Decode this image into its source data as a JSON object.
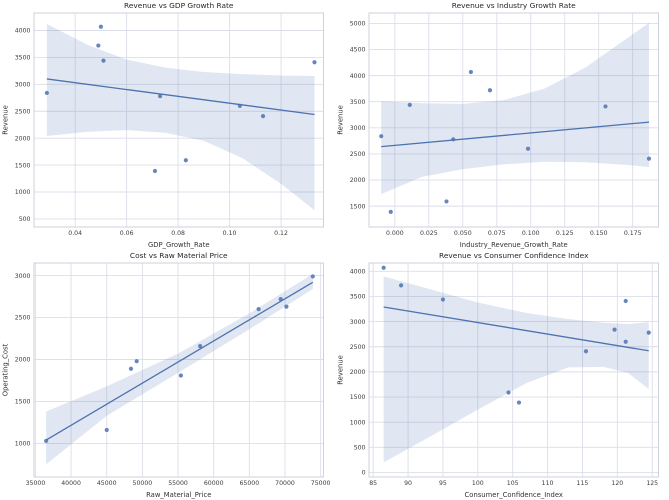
{
  "figure": {
    "background": "#ffffff",
    "layout": "2x2-subplots"
  },
  "colors": {
    "point": "#4c72b0",
    "line": "#4c72b0",
    "band": "rgba(76,114,176,0.17)",
    "grid": "#dcdee9",
    "spine": "#cfd2dc",
    "tick_text": "#3d3d3d",
    "label_text": "#333333",
    "title_text": "#262626",
    "plot_bg": "#ffffff"
  },
  "chart_data": [
    {
      "type": "scatter",
      "name": "revenue-vs-gdp-growth-rate",
      "title": "Revenue vs GDP Growth Rate",
      "xlabel": "GDP_Growth_Rate",
      "ylabel": "Revenue",
      "xlim": [
        0.024,
        0.1365
      ],
      "ylim": [
        350,
        4325
      ],
      "xticks": [
        0.04,
        0.06,
        0.08,
        0.1,
        0.12
      ],
      "xtick_labels": [
        "0.04",
        "0.06",
        "0.08",
        "0.10",
        "0.12"
      ],
      "yticks": [
        500,
        1000,
        1500,
        2000,
        2500,
        3000,
        3500,
        4000
      ],
      "ytick_labels": [
        "500",
        "1000",
        "1500",
        "2000",
        "2500",
        "3000",
        "3500",
        "4000"
      ],
      "grid": true,
      "legend": null,
      "points": [
        [
          0.029,
          2840
        ],
        [
          0.05,
          4070
        ],
        [
          0.049,
          3720
        ],
        [
          0.051,
          3440
        ],
        [
          0.073,
          2780
        ],
        [
          0.071,
          1390
        ],
        [
          0.083,
          1590
        ],
        [
          0.104,
          2600
        ],
        [
          0.113,
          2410
        ],
        [
          0.133,
          3410
        ]
      ],
      "regression_line": {
        "x": [
          0.029,
          0.133
        ],
        "y": [
          3100,
          2440
        ]
      },
      "confidence_band": {
        "x": [
          0.029,
          0.045,
          0.06,
          0.075,
          0.09,
          0.105,
          0.12,
          0.133
        ],
        "upper": [
          4120,
          3730,
          3460,
          3310,
          3230,
          3190,
          3165,
          3155
        ],
        "lower": [
          2040,
          2120,
          2150,
          2100,
          1950,
          1630,
          1150,
          660
        ]
      }
    },
    {
      "type": "scatter",
      "name": "revenue-vs-industry-growth-rate",
      "title": "Revenue vs Industry Growth Rate",
      "xlabel": "Industry_Revenue_Growth_Rate",
      "ylabel": "Revenue",
      "xlim": [
        -0.019,
        0.194
      ],
      "ylim": [
        1100,
        5200
      ],
      "xticks": [
        0.0,
        0.025,
        0.05,
        0.075,
        0.1,
        0.125,
        0.15,
        0.175
      ],
      "xtick_labels": [
        "0.000",
        "0.025",
        "0.050",
        "0.075",
        "0.100",
        "0.125",
        "0.150",
        "0.175"
      ],
      "yticks": [
        1500,
        2000,
        2500,
        3000,
        3500,
        4000,
        4500,
        5000
      ],
      "ytick_labels": [
        "1500",
        "2000",
        "2500",
        "3000",
        "3500",
        "4000",
        "4500",
        "5000"
      ],
      "grid": true,
      "legend": null,
      "points": [
        [
          -0.01,
          2840
        ],
        [
          -0.003,
          1390
        ],
        [
          0.011,
          3440
        ],
        [
          0.038,
          1590
        ],
        [
          0.043,
          2780
        ],
        [
          0.056,
          4070
        ],
        [
          0.07,
          3720
        ],
        [
          0.098,
          2600
        ],
        [
          0.155,
          3410
        ],
        [
          0.187,
          2410
        ]
      ],
      "regression_line": {
        "x": [
          -0.01,
          0.187
        ],
        "y": [
          2640,
          3110
        ]
      },
      "confidence_band": {
        "x": [
          -0.01,
          0.02,
          0.05,
          0.08,
          0.11,
          0.14,
          0.17,
          0.187
        ],
        "upper": [
          3510,
          3470,
          3460,
          3530,
          3750,
          4150,
          4700,
          5010
        ],
        "lower": [
          1730,
          2060,
          2210,
          2300,
          2350,
          2340,
          2290,
          2250
        ]
      }
    },
    {
      "type": "scatter",
      "name": "cost-vs-raw-material-price",
      "title": "Cost vs Raw Material Price",
      "xlabel": "Raw_Material_Price",
      "ylabel": "Operating_Cost",
      "xlim": [
        34800,
        75400
      ],
      "ylim": [
        600,
        3150
      ],
      "xticks": [
        35000,
        40000,
        45000,
        50000,
        55000,
        60000,
        65000,
        70000,
        75000
      ],
      "xtick_labels": [
        "35000",
        "40000",
        "45000",
        "50000",
        "55000",
        "60000",
        "65000",
        "70000",
        "75000"
      ],
      "yticks": [
        1000,
        1500,
        2000,
        2500,
        3000
      ],
      "ytick_labels": [
        "1000",
        "1500",
        "2000",
        "2500",
        "3000"
      ],
      "grid": true,
      "legend": null,
      "points": [
        [
          36500,
          1030
        ],
        [
          45000,
          1160
        ],
        [
          48400,
          1890
        ],
        [
          49200,
          1980
        ],
        [
          55400,
          1810
        ],
        [
          58100,
          2160
        ],
        [
          66300,
          2600
        ],
        [
          69400,
          2720
        ],
        [
          70200,
          2630
        ],
        [
          73900,
          2990
        ]
      ],
      "regression_line": {
        "x": [
          36500,
          73900
        ],
        "y": [
          1040,
          2920
        ]
      },
      "confidence_band": {
        "x": [
          36500,
          45000,
          55000,
          65000,
          73900
        ],
        "upper": [
          1380,
          1680,
          2070,
          2550,
          3020
        ],
        "lower": [
          750,
          1330,
          1840,
          2360,
          2840
        ]
      }
    },
    {
      "type": "scatter",
      "name": "revenue-vs-consumer-confidence-index",
      "title": "Revenue vs Consumer Confidence Index",
      "xlabel": "Consumer_Confidence_Index",
      "ylabel": "Revenue",
      "xlim": [
        84.4,
        125.9
      ],
      "ylim": [
        -90,
        4165
      ],
      "xticks": [
        85,
        90,
        95,
        100,
        105,
        110,
        115,
        120,
        125
      ],
      "xtick_labels": [
        "85",
        "90",
        "95",
        "100",
        "105",
        "110",
        "115",
        "120",
        "125"
      ],
      "yticks": [
        0,
        500,
        1000,
        1500,
        2000,
        2500,
        3000,
        3500,
        4000
      ],
      "ytick_labels": [
        "0",
        "500",
        "1000",
        "1500",
        "2000",
        "2500",
        "3000",
        "3500",
        "4000"
      ],
      "grid": true,
      "legend": null,
      "points": [
        [
          86.5,
          4070
        ],
        [
          89.0,
          3720
        ],
        [
          95.0,
          3440
        ],
        [
          104.4,
          1590
        ],
        [
          105.9,
          1390
        ],
        [
          115.5,
          2410
        ],
        [
          119.6,
          2840
        ],
        [
          121.2,
          3410
        ],
        [
          121.2,
          2600
        ],
        [
          124.5,
          2780
        ]
      ],
      "regression_line": {
        "x": [
          86.5,
          124.5
        ],
        "y": [
          3290,
          2420
        ]
      },
      "confidence_band": {
        "x": [
          86.5,
          93,
          100,
          107,
          113,
          118,
          121.5,
          124.5
        ],
        "upper": [
          3900,
          3650,
          3380,
          3170,
          3050,
          2980,
          2950,
          2990
        ],
        "lower": [
          200,
          700,
          1250,
          1780,
          2090,
          2100,
          1980,
          1660
        ]
      }
    }
  ]
}
